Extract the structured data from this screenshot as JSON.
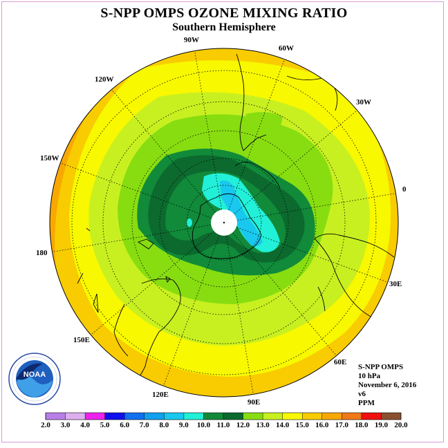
{
  "header": {
    "title": "S-NPP OMPS OZONE MIXING RATIO",
    "subtitle": "Southern Hemisphere"
  },
  "map": {
    "projection": "south polar stereographic",
    "longitude_labels": [
      "90W",
      "60W",
      "30W",
      "0",
      "30E",
      "60E",
      "90E",
      "120E",
      "150E",
      "180",
      "150W",
      "120W"
    ]
  },
  "info": {
    "instrument": "S-NPP OMPS",
    "level": "10 hPa",
    "date": "November 6, 2016",
    "version": "v6",
    "units": "PPM"
  },
  "colorbar": {
    "ticks": [
      "2.0",
      "3.0",
      "4.0",
      "5.0",
      "6.0",
      "7.0",
      "8.0",
      "9.0",
      "10.0",
      "11.0",
      "12.0",
      "13.0",
      "14.0",
      "15.0",
      "16.0",
      "17.0",
      "18.0",
      "19.0",
      "20.0"
    ],
    "colors": [
      "#b87fe8",
      "#dcb0ef",
      "#ee22ee",
      "#1010ee",
      "#1070ee",
      "#10a0ee",
      "#19c8ee",
      "#22f0d8",
      "#118a3a",
      "#0c6a2e",
      "#88dd10",
      "#c8f020",
      "#f8f800",
      "#f8cc00",
      "#f8a800",
      "#f07818",
      "#f01010",
      "#8a5030"
    ]
  },
  "logo": {
    "text": "NOAA"
  },
  "colors": {
    "cyan": "#22f0d8",
    "light_blue": "#19c8ee",
    "dark_green": "#0c6a2e",
    "green": "#118a3a",
    "lime": "#88dd10",
    "yellow_green": "#c8f020",
    "yellow": "#f8f800",
    "gold": "#f8cc00",
    "orange": "#f8a800"
  }
}
